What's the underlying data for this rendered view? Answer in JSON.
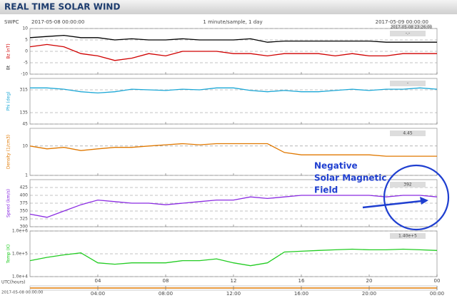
{
  "header": {
    "title": "REAL TIME SOLAR WIND",
    "source": "SWPC",
    "start": "2017-05-08 00:00:00",
    "sampling": "1 minute/sample, 1 day",
    "end": "2017-05-09 00:00:00",
    "latest": "2017-05-08 23:26:00"
  },
  "time": {
    "x": [
      0,
      1,
      2,
      3,
      4,
      5,
      6,
      7,
      8,
      9,
      10,
      11,
      12,
      13,
      14,
      15,
      16,
      17,
      18,
      19,
      20,
      21,
      22,
      23,
      24
    ],
    "xlim": [
      0,
      24
    ],
    "xticks": [
      {
        "value": 4,
        "label": "04"
      },
      {
        "value": 8,
        "label": "08"
      },
      12,
      16,
      20,
      {
        "value": 24,
        "label": "00"
      }
    ],
    "xticks_bottom": [
      {
        "value": 4,
        "label": "04:00"
      },
      {
        "value": 8,
        "label": "08:00"
      },
      {
        "value": 12,
        "label": "12:00"
      },
      {
        "value": 16,
        "label": "16:00"
      },
      {
        "value": 20,
        "label": "20:00"
      },
      {
        "value": 24,
        "label": "00:00"
      }
    ],
    "xlabel": "UTC(hours)",
    "origin": "2017-05-08 00:00:00"
  },
  "chart_data": [
    {
      "type": "line",
      "current_value": "-.-",
      "ylim": [
        -10,
        10
      ],
      "yticks": [
        -10,
        -5,
        0,
        5,
        10
      ],
      "grid": true,
      "series": [
        {
          "name": "Bz (nT)",
          "color": "#d00000",
          "values": [
            2,
            3,
            2,
            -1,
            -2,
            -4,
            -3,
            -1,
            -2,
            0,
            0,
            0,
            -1,
            -1,
            -2,
            -1,
            -1,
            -1,
            -2,
            -1,
            -2,
            -2,
            -1,
            -1,
            -1
          ]
        },
        {
          "name": "Bt",
          "color": "#000000",
          "values": [
            6,
            6.5,
            7,
            6,
            6,
            5,
            5.5,
            5,
            5,
            5.5,
            5,
            5,
            5,
            5.5,
            4,
            4.5,
            4.5,
            4.5,
            4.5,
            4.5,
            4.5,
            4,
            4,
            4,
            4
          ]
        }
      ]
    },
    {
      "type": "line",
      "current_value": "-",
      "ylim": [
        45,
        405
      ],
      "yticks": [
        45,
        135,
        315
      ],
      "grid": true,
      "series": [
        {
          "name": "Phi (deg)",
          "color": "#1ba7d6",
          "values": [
            330,
            330,
            320,
            300,
            290,
            300,
            320,
            315,
            310,
            320,
            315,
            330,
            330,
            310,
            300,
            310,
            300,
            300,
            310,
            320,
            310,
            320,
            320,
            330,
            320
          ]
        }
      ]
    },
    {
      "type": "line",
      "log": true,
      "current_value": "4.45",
      "ylim": [
        1,
        40
      ],
      "yticks": [
        1,
        10
      ],
      "grid": true,
      "series": [
        {
          "name": "Density (1/cm3)",
          "color": "#e07800",
          "values": [
            10,
            8,
            9,
            7,
            8,
            9,
            9,
            10,
            11,
            12,
            11,
            12,
            12,
            12,
            12,
            6,
            5,
            5,
            5,
            5,
            5,
            4.5,
            4.5,
            4.5,
            4.5
          ]
        }
      ]
    },
    {
      "type": "line",
      "current_value": "392",
      "ylim": [
        300,
        450
      ],
      "yticks": [
        300,
        325,
        350,
        375,
        400,
        425
      ],
      "grid": true,
      "series": [
        {
          "name": "Speed (km/s)",
          "color": "#8a2be2",
          "values": [
            340,
            330,
            350,
            370,
            385,
            380,
            375,
            375,
            370,
            375,
            380,
            385,
            385,
            395,
            390,
            395,
            400,
            400,
            400,
            400,
            400,
            395,
            400,
            400,
            395
          ]
        }
      ]
    },
    {
      "type": "line",
      "log": true,
      "current_value": "1.40e+5",
      "ylim": [
        10000,
        1000000
      ],
      "yticks": [
        {
          "value": 10000,
          "label": "1.0e+4"
        },
        {
          "value": 100000,
          "label": "1.0e+5"
        },
        {
          "value": 1000000,
          "label": "1.0e+6"
        }
      ],
      "grid": true,
      "series": [
        {
          "name": "Temp (K)",
          "color": "#22cc22",
          "values": [
            50000,
            70000,
            90000,
            110000,
            40000,
            35000,
            40000,
            40000,
            40000,
            50000,
            50000,
            60000,
            40000,
            30000,
            40000,
            120000,
            130000,
            140000,
            150000,
            160000,
            150000,
            150000,
            160000,
            150000,
            140000
          ]
        }
      ]
    }
  ],
  "annotation": {
    "lines": [
      "Negative",
      "Solar Magnetic",
      "Field"
    ],
    "color": "#1f3fd0"
  }
}
